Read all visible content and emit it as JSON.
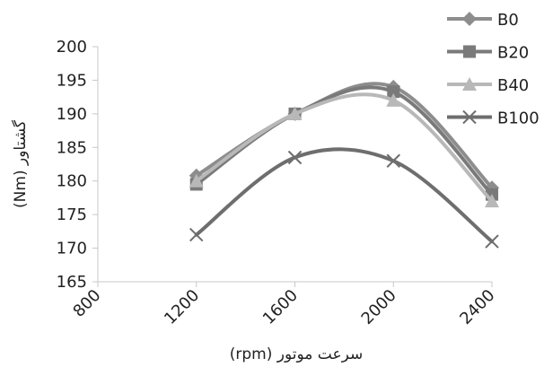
{
  "chart_data": {
    "type": "line",
    "xlabel": "سرعت موتور (rpm)",
    "ylabel": "گشتاور (Nm)",
    "xlim": [
      800,
      2400
    ],
    "ylim": [
      165,
      200
    ],
    "x_ticks": [
      "800",
      "1200",
      "1600",
      "2000",
      "2400"
    ],
    "y_ticks": [
      "165",
      "170",
      "175",
      "180",
      "185",
      "190",
      "195",
      "200"
    ],
    "x": [
      1200,
      1600,
      2000,
      2400
    ],
    "smooth": true,
    "grid": false,
    "legend_position": "top-right",
    "series": [
      {
        "name": "B0",
        "values": [
          180.8,
          190.0,
          194.0,
          179.0
        ],
        "color": "#8d8d8d",
        "marker": "diamond"
      },
      {
        "name": "B20",
        "values": [
          179.5,
          190.0,
          193.3,
          178.0
        ],
        "color": "#7a7a7a",
        "marker": "square"
      },
      {
        "name": "B40",
        "values": [
          180.0,
          190.0,
          192.0,
          177.0
        ],
        "color": "#b8b8b8",
        "marker": "triangle"
      },
      {
        "name": "B100",
        "values": [
          172.0,
          183.5,
          183.0,
          171.0
        ],
        "color": "#6e6e6e",
        "marker": "x"
      }
    ]
  }
}
